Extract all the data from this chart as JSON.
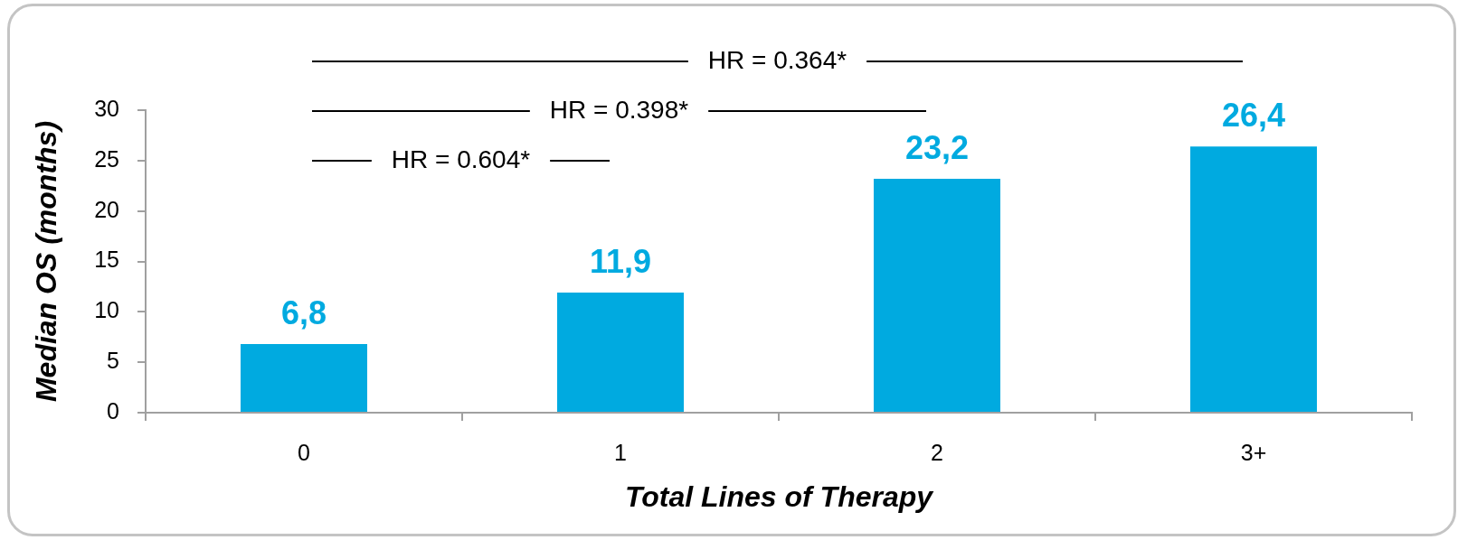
{
  "chart_data": {
    "type": "bar",
    "categories": [
      "0",
      "1",
      "2",
      "3+"
    ],
    "values": [
      6.8,
      11.9,
      23.2,
      26.4
    ],
    "color": "#00aae0",
    "value_labels": [
      "6,8",
      "11,9",
      "23,2",
      "26,4"
    ],
    "ylim": [
      0,
      30
    ],
    "yticks": [
      0,
      5,
      10,
      15,
      20,
      25,
      30
    ],
    "grid": false,
    "xlabel": "Total Lines of Therapy",
    "ylabel": "Median OS (months)",
    "annotations": [
      "HR = 0.604*",
      "HR = 0.398*",
      "HR = 0.364*"
    ]
  }
}
